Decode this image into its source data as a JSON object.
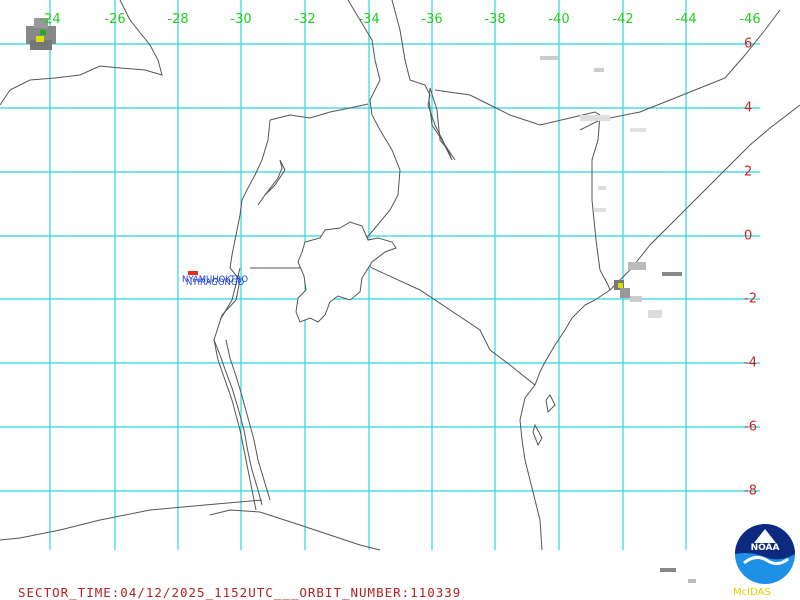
{
  "grid": {
    "lon_labels": [
      "-24",
      "-26",
      "-28",
      "-30",
      "-32",
      "-34",
      "-36",
      "-38",
      "-40",
      "-42",
      "-44",
      "-46"
    ],
    "lat_labels": [
      "6",
      "4",
      "2",
      "0",
      "-2",
      "-4",
      "-6",
      "-8"
    ]
  },
  "places": {
    "label_a": "NYAMUHOKTRO",
    "label_b": "NYIRAGONGO"
  },
  "footer": {
    "sector_text": "SECTOR_TIME:04/12/2025_1152UTC___ORBIT_NUMBER:110339"
  },
  "logo": {
    "noaa_text": "NOAA",
    "mcidas_text": "McIDAS"
  },
  "colors": {
    "grid_line": "#2ad6e0",
    "border_line": "#555555",
    "lon_label": "#22cc22",
    "lat_label": "#cc2222",
    "footer_text": "#b22222"
  }
}
